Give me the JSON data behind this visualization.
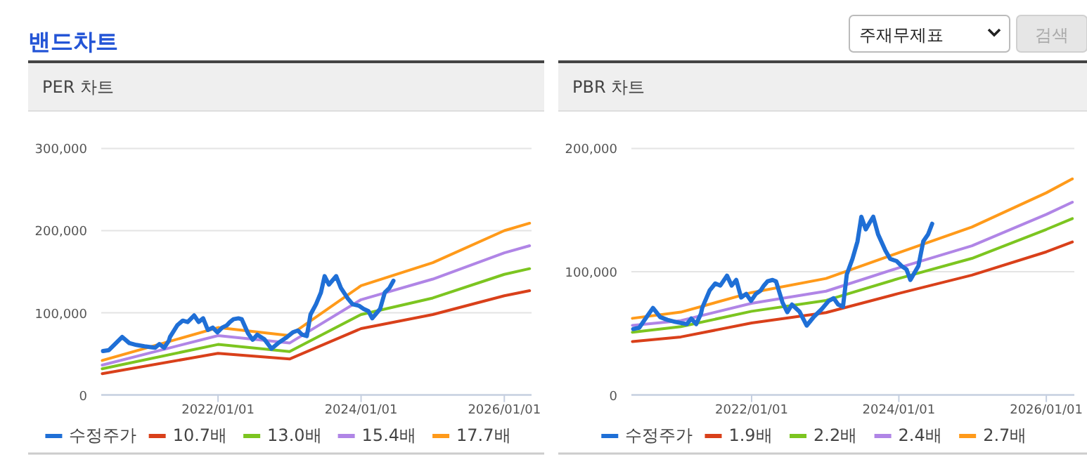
{
  "chart_data": [
    {
      "type": "other",
      "title": "밴드차트",
      "annotations": [
        "주재무제표",
        "검색"
      ]
    },
    {
      "type": "line",
      "title": "PER 차트",
      "grid": "y",
      "legend": "bottom",
      "xlim": [
        "2020-05-15",
        "2026-05-20"
      ],
      "ylim": [
        0,
        300000
      ],
      "xticks": [
        {
          "value": "2022-01-01",
          "label": "2022/01/01"
        },
        {
          "value": "2024-01-01",
          "label": "2024/01/01"
        },
        {
          "value": "2026-01-01",
          "label": "2026/01/01"
        }
      ],
      "yticks": [
        0,
        {
          "value": 100000,
          "label": "100,000"
        },
        {
          "value": 200000,
          "label": "200,000"
        },
        {
          "value": 300000,
          "label": "300,000"
        }
      ],
      "series": [
        {
          "name": "수정주가",
          "color": "#1f6fd6",
          "x": [
            "2020-05-24",
            "2020-06-23",
            "2020-07-24",
            "2020-08-30",
            "2020-10-05",
            "2020-11-10",
            "2020-12-21",
            "2021-02-14",
            "2021-03-08",
            "2021-04-01",
            "2021-04-25",
            "2021-05-01",
            "2021-06-07",
            "2021-07-05",
            "2021-07-30",
            "2021-09-01",
            "2021-09-24",
            "2021-10-17",
            "2021-11-10",
            "2021-12-05",
            "2021-12-29",
            "2022-01-22",
            "2022-02-15",
            "2022-03-03",
            "2022-03-21",
            "2022-04-15",
            "2022-05-02",
            "2022-06-03",
            "2022-06-27",
            "2022-07-20",
            "2022-08-26",
            "2022-10-01",
            "2022-11-07",
            "2022-12-13",
            "2023-01-18",
            "2023-02-12",
            "2023-03-06",
            "2023-03-30",
            "2023-04-18",
            "2023-05-16",
            "2023-06-10",
            "2023-06-29",
            "2023-07-21",
            "2023-08-10",
            "2023-08-27",
            "2023-09-20",
            "2023-10-26",
            "2023-11-19",
            "2023-12-20",
            "2024-01-14",
            "2024-02-08",
            "2024-02-27",
            "2024-03-14",
            "2024-04-07",
            "2024-05-01",
            "2024-05-25",
            "2024-06-14"
          ],
          "values": [
            53500,
            54600,
            62000,
            70600,
            63200,
            60900,
            59200,
            57500,
            62000,
            57500,
            66000,
            70600,
            84800,
            90500,
            88800,
            96800,
            88800,
            93300,
            79100,
            82000,
            76300,
            82000,
            84800,
            88800,
            92200,
            93300,
            92200,
            75100,
            67200,
            73400,
            67700,
            56300,
            63700,
            69400,
            76300,
            78500,
            73400,
            71700,
            97900,
            110400,
            124600,
            144600,
            134300,
            140000,
            144600,
            130300,
            117200,
            110400,
            108700,
            104700,
            101900,
            93300,
            97900,
            104700,
            124600,
            130300,
            138900
          ]
        },
        {
          "name": "10.7배",
          "color": "#d9401a",
          "x": [
            "2020-05-20",
            "2022-01-01",
            "2023-01-01",
            "2024-01-01",
            "2025-01-01",
            "2026-01-01",
            "2026-05-10"
          ],
          "values": [
            26000,
            50700,
            43800,
            80800,
            97900,
            120700,
            127000
          ]
        },
        {
          "name": "13.0배",
          "color": "#7cc520",
          "x": [
            "2020-05-20",
            "2022-01-01",
            "2023-01-01",
            "2024-01-01",
            "2025-01-01",
            "2026-01-01",
            "2026-05-10"
          ],
          "values": [
            31900,
            61500,
            52900,
            97900,
            118000,
            146800,
            153700
          ]
        },
        {
          "name": "15.4배",
          "color": "#b085e6",
          "x": [
            "2020-05-20",
            "2022-01-01",
            "2023-01-01",
            "2024-01-01",
            "2025-01-01",
            "2026-01-01",
            "2026-05-10"
          ],
          "values": [
            36400,
            72300,
            63200,
            116000,
            141000,
            173000,
            181600
          ]
        },
        {
          "name": "17.7배",
          "color": "#ff9a1a",
          "x": [
            "2020-05-20",
            "2022-01-01",
            "2023-01-01",
            "2024-01-01",
            "2025-01-01",
            "2026-01-01",
            "2026-05-10"
          ],
          "values": [
            42000,
            82000,
            72300,
            133000,
            161000,
            200000,
            209000
          ]
        }
      ]
    },
    {
      "type": "line",
      "title": "PBR 차트",
      "grid": "y",
      "legend": "bottom",
      "xlim": [
        "2020-05-15",
        "2026-05-20"
      ],
      "ylim": [
        0,
        200000
      ],
      "xticks": [
        {
          "value": "2022-01-01",
          "label": "2022/01/01"
        },
        {
          "value": "2024-01-01",
          "label": "2024/01/01"
        },
        {
          "value": "2026-01-01",
          "label": "2026/01/01"
        }
      ],
      "yticks": [
        0,
        {
          "value": 100000,
          "label": "100,000"
        },
        {
          "value": 200000,
          "label": "200,000"
        }
      ],
      "series": [
        {
          "name": "수정주가",
          "color": "#1f6fd6",
          "x": [
            "2020-05-24",
            "2020-06-23",
            "2020-07-24",
            "2020-08-30",
            "2020-10-05",
            "2020-11-10",
            "2020-12-21",
            "2021-02-14",
            "2021-03-08",
            "2021-04-01",
            "2021-04-25",
            "2021-05-01",
            "2021-06-07",
            "2021-07-05",
            "2021-07-30",
            "2021-09-01",
            "2021-09-24",
            "2021-10-17",
            "2021-11-10",
            "2021-12-05",
            "2021-12-29",
            "2022-01-22",
            "2022-02-15",
            "2022-03-03",
            "2022-03-21",
            "2022-04-15",
            "2022-05-02",
            "2022-06-03",
            "2022-06-27",
            "2022-07-20",
            "2022-08-26",
            "2022-10-01",
            "2022-11-07",
            "2022-12-13",
            "2023-01-18",
            "2023-02-12",
            "2023-03-06",
            "2023-03-30",
            "2023-04-18",
            "2023-05-16",
            "2023-06-10",
            "2023-06-29",
            "2023-07-21",
            "2023-08-10",
            "2023-08-27",
            "2023-09-20",
            "2023-10-26",
            "2023-11-19",
            "2023-12-20",
            "2024-01-14",
            "2024-02-08",
            "2024-02-27",
            "2024-03-14",
            "2024-04-07",
            "2024-05-01",
            "2024-05-25",
            "2024-06-14"
          ],
          "values": [
            53500,
            54600,
            62000,
            70600,
            63200,
            60900,
            59200,
            57500,
            62000,
            57500,
            66000,
            70600,
            84800,
            90500,
            88800,
            96800,
            88800,
            93300,
            79100,
            82000,
            76300,
            82000,
            84800,
            88800,
            92200,
            93300,
            92200,
            75100,
            67200,
            73400,
            67700,
            56300,
            63700,
            69400,
            76300,
            78500,
            73400,
            71700,
            97900,
            110400,
            124600,
            144600,
            134300,
            140000,
            144600,
            130300,
            117200,
            110400,
            108700,
            104700,
            101900,
            93300,
            97900,
            104700,
            124600,
            130300,
            138900
          ]
        },
        {
          "name": "1.9배",
          "color": "#d9401a",
          "x": [
            "2020-05-20",
            "2021-01-15",
            "2022-01-01",
            "2023-01-05",
            "2024-01-01",
            "2024-12-28",
            "2026-01-01",
            "2026-05-10"
          ],
          "values": [
            43300,
            47100,
            58400,
            66800,
            82400,
            97200,
            116100,
            124100
          ]
        },
        {
          "name": "2.2배",
          "color": "#7cc520",
          "x": [
            "2020-05-20",
            "2021-01-15",
            "2022-01-01",
            "2023-01-05",
            "2024-01-01",
            "2024-12-28",
            "2026-01-01",
            "2026-05-10"
          ],
          "values": [
            50900,
            55400,
            67900,
            76700,
            94500,
            110800,
            134300,
            143100
          ]
        },
        {
          "name": "2.4배",
          "color": "#b085e6",
          "x": [
            "2020-05-20",
            "2021-01-15",
            "2022-01-01",
            "2023-01-05",
            "2024-01-01",
            "2024-12-28",
            "2026-01-01",
            "2026-05-10"
          ],
          "values": [
            56500,
            60300,
            74400,
            84200,
            103200,
            121000,
            146500,
            156400
          ]
        },
        {
          "name": "2.7배",
          "color": "#ff9a1a",
          "x": [
            "2020-05-20",
            "2021-01-15",
            "2022-01-01",
            "2023-01-05",
            "2024-01-01",
            "2024-12-28",
            "2026-01-01",
            "2026-05-10"
          ],
          "values": [
            62200,
            67200,
            83100,
            94500,
            115400,
            136200,
            164000,
            175300
          ]
        }
      ]
    }
  ]
}
